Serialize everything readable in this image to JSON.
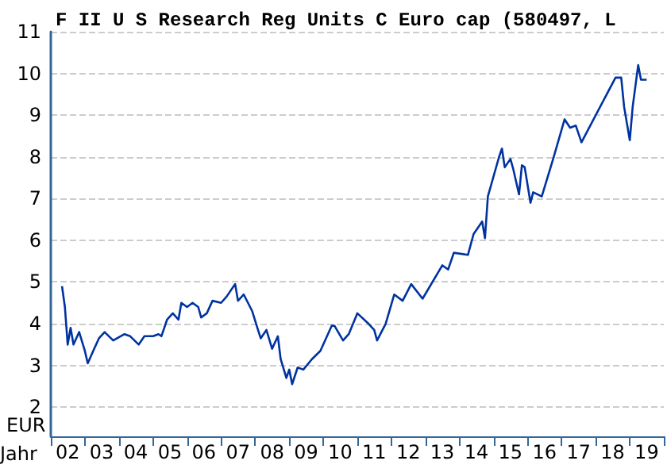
{
  "chart_data": {
    "type": "line",
    "title": "F II U S Research Reg Units C Euro cap (580497, L",
    "xlabel": "Jahr",
    "ylabel": "EUR",
    "x": [
      "2002-05",
      "2002-06",
      "2002-07",
      "2002-08",
      "2002-09",
      "2002-11",
      "2003-01",
      "2003-02",
      "2003-04",
      "2003-06",
      "2003-08",
      "2003-11",
      "2004-03",
      "2004-05",
      "2004-08",
      "2004-10",
      "2005-01",
      "2005-03",
      "2005-04",
      "2005-06",
      "2005-08",
      "2005-10",
      "2005-11",
      "2006-01",
      "2006-03",
      "2006-05",
      "2006-06",
      "2006-08",
      "2006-10",
      "2007-01",
      "2007-03",
      "2007-06",
      "2007-07",
      "2007-09",
      "2007-12",
      "2008-02",
      "2008-03",
      "2008-05",
      "2008-07",
      "2008-09",
      "2008-10",
      "2008-12",
      "2009-01",
      "2009-02",
      "2009-04",
      "2009-06",
      "2009-09",
      "2009-12",
      "2010-04",
      "2010-05",
      "2010-08",
      "2010-10",
      "2011-01",
      "2011-05",
      "2011-07",
      "2011-08",
      "2011-11",
      "2012-02",
      "2012-05",
      "2012-08",
      "2012-12",
      "2013-07",
      "2013-09",
      "2013-11",
      "2014-04",
      "2014-06",
      "2014-09",
      "2014-10",
      "2014-11",
      "2015-03",
      "2015-04",
      "2015-05",
      "2015-07",
      "2015-08",
      "2015-10",
      "2015-11",
      "2015-12",
      "2016-02",
      "2016-03",
      "2016-06",
      "2016-10",
      "2017-02",
      "2017-04",
      "2017-06",
      "2017-08",
      "2018-08",
      "2018-10",
      "2018-11",
      "2019-01",
      "2019-02",
      "2019-04",
      "2019-05",
      "2019-07"
    ],
    "series": [
      {
        "color": "#0033a0",
        "values": [
          4.9,
          4.4,
          3.5,
          3.9,
          3.5,
          3.8,
          3.35,
          3.05,
          3.35,
          3.65,
          3.8,
          3.6,
          3.75,
          3.7,
          3.5,
          3.7,
          3.7,
          3.75,
          3.7,
          4.1,
          4.25,
          4.1,
          4.5,
          4.4,
          4.5,
          4.4,
          4.15,
          4.25,
          4.55,
          4.5,
          4.65,
          4.95,
          4.55,
          4.7,
          4.3,
          3.85,
          3.65,
          3.85,
          3.4,
          3.7,
          3.15,
          2.7,
          2.9,
          2.55,
          2.95,
          2.9,
          3.15,
          3.35,
          3.95,
          3.95,
          3.6,
          3.75,
          4.25,
          4.0,
          3.85,
          3.6,
          4.0,
          4.7,
          4.55,
          4.95,
          4.6,
          5.4,
          5.3,
          5.7,
          5.65,
          6.15,
          6.45,
          6.05,
          7.05,
          8.0,
          8.2,
          7.75,
          7.95,
          7.7,
          7.1,
          7.8,
          7.75,
          6.9,
          7.15,
          7.05,
          7.95,
          8.9,
          8.7,
          8.75,
          8.35,
          9.9,
          9.9,
          9.2,
          8.4,
          9.2,
          10.2,
          9.85,
          9.85
        ]
      }
    ],
    "xlim": [
      "2002-01",
      "2020-01"
    ],
    "xticks": [
      {
        "value": "2002-01",
        "label": null
      },
      {
        "value": "2002-07",
        "label": "02"
      },
      {
        "value": "2003-01",
        "label": null
      },
      {
        "value": "2003-07",
        "label": "03"
      },
      {
        "value": "2004-01",
        "label": null
      },
      {
        "value": "2004-07",
        "label": "04"
      },
      {
        "value": "2005-01",
        "label": null
      },
      {
        "value": "2005-07",
        "label": "05"
      },
      {
        "value": "2006-01",
        "label": null
      },
      {
        "value": "2006-07",
        "label": "06"
      },
      {
        "value": "2007-01",
        "label": null
      },
      {
        "value": "2007-07",
        "label": "07"
      },
      {
        "value": "2008-01",
        "label": null
      },
      {
        "value": "2008-07",
        "label": "08"
      },
      {
        "value": "2009-01",
        "label": null
      },
      {
        "value": "2009-07",
        "label": "09"
      },
      {
        "value": "2010-01",
        "label": null
      },
      {
        "value": "2010-07",
        "label": "10"
      },
      {
        "value": "2011-01",
        "label": null
      },
      {
        "value": "2011-07",
        "label": "11"
      },
      {
        "value": "2012-01",
        "label": null
      },
      {
        "value": "2012-07",
        "label": "12"
      },
      {
        "value": "2013-01",
        "label": null
      },
      {
        "value": "2013-07",
        "label": "13"
      },
      {
        "value": "2014-01",
        "label": null
      },
      {
        "value": "2014-07",
        "label": "14"
      },
      {
        "value": "2015-01",
        "label": null
      },
      {
        "value": "2015-07",
        "label": "15"
      },
      {
        "value": "2016-01",
        "label": null
      },
      {
        "value": "2016-07",
        "label": "16"
      },
      {
        "value": "2017-01",
        "label": null
      },
      {
        "value": "2017-07",
        "label": "17"
      },
      {
        "value": "2018-01",
        "label": null
      },
      {
        "value": "2018-07",
        "label": "18"
      },
      {
        "value": "2019-01",
        "label": null
      },
      {
        "value": "2019-07",
        "label": "19"
      },
      {
        "value": "2020-01",
        "label": null
      }
    ],
    "ylim": [
      1.3,
      11
    ],
    "yticks": [
      2,
      3,
      4,
      5,
      6,
      7,
      8,
      9,
      10,
      11
    ],
    "grid": "y",
    "marker": "none",
    "line_style": "solid"
  }
}
